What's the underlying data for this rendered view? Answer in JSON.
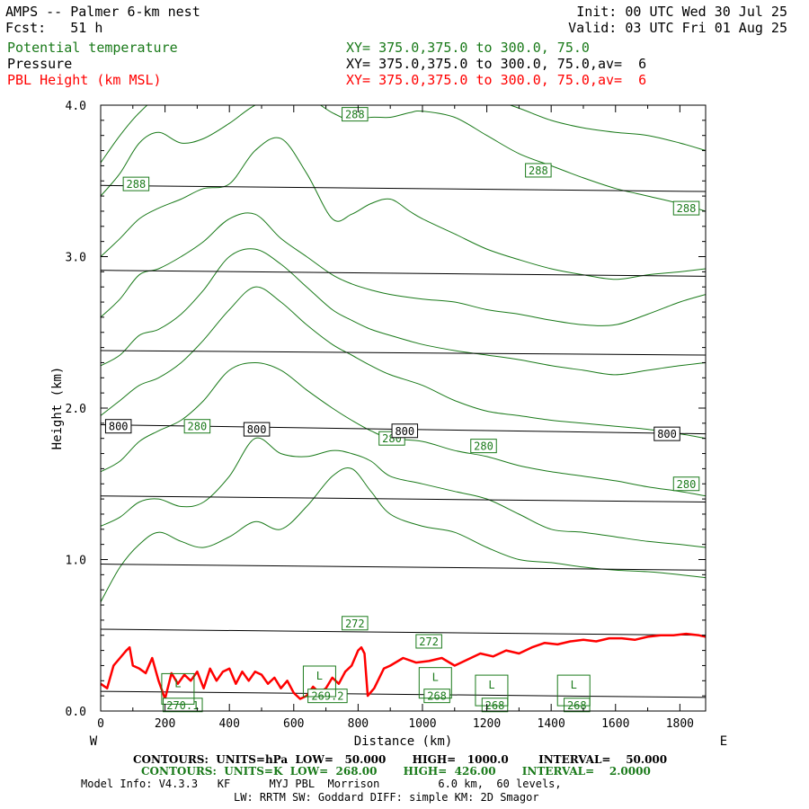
{
  "header": {
    "left1": "AMPS -- Palmer 6-km nest",
    "left2": "Fcst:   51 h",
    "init": "Init: 00 UTC Wed 30 Jul 25",
    "valid": "Valid: 03 UTC Fri 01 Aug 25",
    "field1_name": "Potential temperature",
    "field1_xy": "XY= 375.0,375.0 to 300.0, 75.0",
    "field2_name": "Pressure",
    "field2_xy": "XY= 375.0,375.0 to 300.0, 75.0,av=  6",
    "field3_name": "PBL Height (km MSL)",
    "field3_xy": "XY= 375.0,375.0 to 300.0, 75.0,av=  6"
  },
  "footer": {
    "line1": "CONTOURS:  UNITS=hPa  LOW=   50.000       HIGH=   1000.0        INTERVAL=    50.000",
    "line2": "CONTOURS:  UNITS=K  LOW=  268.00       HIGH=  426.00       INTERVAL=    2.0000",
    "line3": "Model Info: V4.3.3   KF      MYJ PBL  Morrison         6.0 km,  60 levels,",
    "line4": "LW: RRTM SW: Goddard DIFF: simple KM: 2D Smagor"
  },
  "colors": {
    "theta": "#1a7a1a",
    "pressure": "#000000",
    "pbl": "#ff0000"
  },
  "chart_data": {
    "type": "line",
    "xlabel": "Distance (km)",
    "ylabel": "Height (km)",
    "xlim": [
      0,
      1880
    ],
    "ylim": [
      0,
      4.0
    ],
    "x_ticks": [
      0,
      200,
      400,
      600,
      800,
      1000,
      1200,
      1400,
      1600,
      1800
    ],
    "y_ticks": [
      0.0,
      1.0,
      2.0,
      3.0,
      4.0
    ],
    "y_tick_labels": [
      "0.0",
      "1.0",
      "2.0",
      "3.0",
      "4.0"
    ],
    "x_end_labels": {
      "left": "W",
      "right": "E"
    },
    "pressure_contours": [
      {
        "y0": 0.13,
        "y1": 0.09
      },
      {
        "y0": 0.54,
        "y1": 0.5
      },
      {
        "y0": 0.97,
        "y1": 0.93
      },
      {
        "y0": 1.42,
        "y1": 1.38
      },
      {
        "y0": 1.89,
        "y1": 1.83
      },
      {
        "y0": 2.38,
        "y1": 2.35
      },
      {
        "y0": 2.91,
        "y1": 2.87
      },
      {
        "y0": 3.47,
        "y1": 3.43
      }
    ],
    "pressure_labels": [
      {
        "text": "800",
        "x": 55,
        "y": 1.88
      },
      {
        "text": "800",
        "x": 485,
        "y": 1.86
      },
      {
        "text": "800",
        "x": 945,
        "y": 1.85
      },
      {
        "text": "800",
        "x": 1760,
        "y": 1.83
      }
    ],
    "theta_contours": [
      {
        "x": [
          0,
          60,
          120,
          180,
          250,
          320,
          400,
          480,
          560,
          640,
          720,
          780,
          840,
          900,
          1000,
          1100,
          1200,
          1300,
          1400,
          1500,
          1600,
          1700,
          1800,
          1880
        ],
        "y": [
          0.72,
          0.95,
          1.1,
          1.18,
          1.12,
          1.08,
          1.15,
          1.25,
          1.2,
          1.35,
          1.55,
          1.6,
          1.45,
          1.3,
          1.22,
          1.18,
          1.08,
          1.0,
          0.98,
          0.95,
          0.93,
          0.92,
          0.9,
          0.88
        ]
      },
      {
        "x": [
          0,
          60,
          120,
          180,
          250,
          320,
          400,
          480,
          560,
          640,
          720,
          780,
          840,
          900,
          1000,
          1100,
          1200,
          1300,
          1400,
          1500,
          1600,
          1700,
          1800,
          1880
        ],
        "y": [
          1.22,
          1.28,
          1.38,
          1.4,
          1.35,
          1.38,
          1.55,
          1.8,
          1.7,
          1.68,
          1.72,
          1.7,
          1.65,
          1.55,
          1.5,
          1.45,
          1.4,
          1.3,
          1.2,
          1.18,
          1.15,
          1.12,
          1.1,
          1.08
        ]
      },
      {
        "x": [
          0,
          60,
          120,
          180,
          250,
          320,
          400,
          480,
          560,
          640,
          720,
          780,
          840,
          900,
          1000,
          1100,
          1200,
          1300,
          1400,
          1500,
          1600,
          1700,
          1800,
          1880
        ],
        "y": [
          1.58,
          1.65,
          1.78,
          1.85,
          1.92,
          2.05,
          2.25,
          2.3,
          2.25,
          2.12,
          2.0,
          1.92,
          1.85,
          1.8,
          1.78,
          1.72,
          1.68,
          1.62,
          1.58,
          1.55,
          1.52,
          1.48,
          1.45,
          1.42
        ]
      },
      {
        "x": [
          0,
          60,
          120,
          180,
          250,
          320,
          400,
          480,
          560,
          640,
          720,
          780,
          840,
          900,
          1000,
          1100,
          1200,
          1300,
          1400,
          1500,
          1600,
          1700,
          1800,
          1880
        ],
        "y": [
          1.95,
          2.05,
          2.15,
          2.2,
          2.3,
          2.45,
          2.65,
          2.8,
          2.7,
          2.55,
          2.42,
          2.35,
          2.28,
          2.22,
          2.15,
          2.05,
          1.98,
          1.95,
          1.92,
          1.9,
          1.88,
          1.86,
          1.83,
          1.8
        ]
      },
      {
        "x": [
          0,
          60,
          120,
          180,
          250,
          320,
          400,
          480,
          560,
          640,
          720,
          780,
          840,
          900,
          1000,
          1100,
          1200,
          1300,
          1400,
          1500,
          1600,
          1700,
          1800,
          1880
        ],
        "y": [
          2.28,
          2.35,
          2.48,
          2.52,
          2.62,
          2.78,
          3.0,
          3.05,
          2.95,
          2.8,
          2.65,
          2.58,
          2.52,
          2.48,
          2.42,
          2.38,
          2.35,
          2.32,
          2.28,
          2.25,
          2.22,
          2.25,
          2.28,
          2.3
        ]
      },
      {
        "x": [
          0,
          60,
          120,
          180,
          250,
          320,
          400,
          480,
          560,
          640,
          720,
          780,
          840,
          900,
          1000,
          1100,
          1200,
          1300,
          1400,
          1500,
          1600,
          1700,
          1800,
          1880
        ],
        "y": [
          2.6,
          2.72,
          2.88,
          2.92,
          3.0,
          3.1,
          3.25,
          3.28,
          3.12,
          3.0,
          2.88,
          2.82,
          2.78,
          2.75,
          2.72,
          2.7,
          2.65,
          2.62,
          2.58,
          2.55,
          2.55,
          2.62,
          2.7,
          2.75
        ]
      },
      {
        "x": [
          0,
          60,
          120,
          180,
          250,
          320,
          400,
          480,
          560,
          640,
          720,
          780,
          840,
          900,
          960,
          1000,
          1100,
          1200,
          1300,
          1400,
          1500,
          1600,
          1700,
          1800,
          1880
        ],
        "y": [
          3.0,
          3.12,
          3.25,
          3.32,
          3.38,
          3.45,
          3.48,
          3.7,
          3.78,
          3.55,
          3.25,
          3.28,
          3.35,
          3.38,
          3.3,
          3.25,
          3.15,
          3.05,
          2.98,
          2.92,
          2.88,
          2.85,
          2.88,
          2.9,
          2.92
        ]
      },
      {
        "x": [
          0,
          60,
          120,
          180,
          250,
          320,
          400,
          480,
          560,
          640,
          720,
          780,
          840,
          900,
          960,
          1000,
          1100,
          1200,
          1300,
          1400,
          1500,
          1600,
          1700,
          1800,
          1880
        ],
        "y": [
          3.4,
          3.55,
          3.75,
          3.82,
          3.75,
          3.78,
          3.88,
          4.0,
          4.05,
          4.05,
          3.95,
          3.9,
          3.92,
          3.92,
          3.95,
          3.96,
          3.92,
          3.8,
          3.68,
          3.6,
          3.52,
          3.45,
          3.4,
          3.35,
          3.3
        ]
      },
      {
        "x": [
          0,
          60,
          120,
          180,
          250,
          320,
          400,
          480,
          560,
          640,
          720,
          780,
          840,
          900,
          960,
          1000,
          1100,
          1200,
          1300,
          1400,
          1500,
          1600,
          1700,
          1800,
          1880
        ],
        "y": [
          3.62,
          3.8,
          3.95,
          4.05,
          4.05,
          4.08,
          4.1,
          4.1,
          4.1,
          4.1,
          4.1,
          4.1,
          4.1,
          4.1,
          4.1,
          4.1,
          4.1,
          4.05,
          3.98,
          3.9,
          3.85,
          3.82,
          3.8,
          3.75,
          3.7
        ]
      }
    ],
    "theta_labels": [
      {
        "text": "288",
        "x": 790,
        "y": 3.94
      },
      {
        "text": "288",
        "x": 110,
        "y": 3.48
      },
      {
        "text": "288",
        "x": 1360,
        "y": 3.57
      },
      {
        "text": "288",
        "x": 1820,
        "y": 3.32
      },
      {
        "text": "280",
        "x": 300,
        "y": 1.88
      },
      {
        "text": "280",
        "x": 905,
        "y": 1.8
      },
      {
        "text": "280",
        "x": 1190,
        "y": 1.75
      },
      {
        "text": "280",
        "x": 1820,
        "y": 1.5
      },
      {
        "text": "272",
        "x": 790,
        "y": 0.58
      },
      {
        "text": "272",
        "x": 1020,
        "y": 0.46
      },
      {
        "text": "270.1",
        "x": 255,
        "y": 0.04
      },
      {
        "text": "269.2",
        "x": 705,
        "y": 0.1
      },
      {
        "text": "268",
        "x": 1045,
        "y": 0.1
      },
      {
        "text": "268",
        "x": 1225,
        "y": 0.04
      },
      {
        "text": "268",
        "x": 1480,
        "y": 0.04
      }
    ],
    "low_centers": [
      {
        "text": "L",
        "x": 240,
        "y": 0.14
      },
      {
        "text": "L",
        "x": 680,
        "y": 0.19
      },
      {
        "text": "L",
        "x": 1040,
        "y": 0.18
      },
      {
        "text": "L",
        "x": 1215,
        "y": 0.13
      },
      {
        "text": "L",
        "x": 1470,
        "y": 0.13
      }
    ],
    "pbl_height": {
      "x": [
        0,
        20,
        40,
        60,
        80,
        90,
        100,
        120,
        140,
        160,
        180,
        200,
        220,
        240,
        260,
        280,
        300,
        320,
        340,
        360,
        380,
        400,
        420,
        440,
        460,
        480,
        500,
        520,
        540,
        560,
        580,
        600,
        620,
        640,
        660,
        680,
        700,
        720,
        740,
        760,
        780,
        800,
        810,
        820,
        830,
        850,
        880,
        900,
        940,
        980,
        1020,
        1060,
        1100,
        1140,
        1180,
        1220,
        1260,
        1300,
        1340,
        1380,
        1420,
        1460,
        1500,
        1540,
        1580,
        1620,
        1660,
        1700,
        1740,
        1780,
        1820,
        1860,
        1880
      ],
      "y": [
        0.18,
        0.15,
        0.3,
        0.35,
        0.4,
        0.42,
        0.3,
        0.28,
        0.25,
        0.35,
        0.2,
        0.08,
        0.25,
        0.18,
        0.24,
        0.2,
        0.26,
        0.15,
        0.28,
        0.2,
        0.26,
        0.28,
        0.18,
        0.26,
        0.2,
        0.26,
        0.24,
        0.18,
        0.22,
        0.15,
        0.2,
        0.12,
        0.08,
        0.1,
        0.16,
        0.12,
        0.15,
        0.22,
        0.18,
        0.26,
        0.3,
        0.4,
        0.42,
        0.38,
        0.1,
        0.15,
        0.28,
        0.3,
        0.35,
        0.32,
        0.33,
        0.35,
        0.3,
        0.34,
        0.38,
        0.36,
        0.4,
        0.38,
        0.42,
        0.45,
        0.44,
        0.46,
        0.47,
        0.46,
        0.48,
        0.48,
        0.47,
        0.49,
        0.5,
        0.5,
        0.51,
        0.5,
        0.49
      ]
    }
  }
}
